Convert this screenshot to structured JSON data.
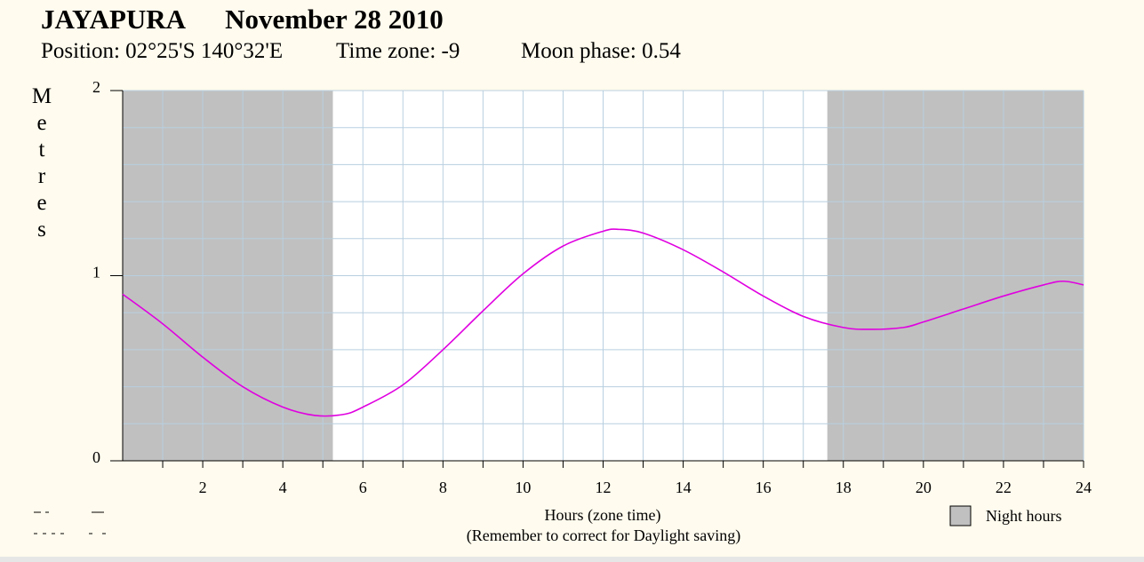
{
  "header": {
    "place": "JAYAPURA",
    "date": "November 28 2010",
    "position": "Position: 02°25'S 140°32'E",
    "timezone": "Time zone: -9",
    "moon_phase": "Moon phase: 0.54"
  },
  "legend": {
    "night_label": "Night hours"
  },
  "colors": {
    "night": "#c0c0c0",
    "curve": "#e000e0",
    "grid": "#b8cfe0",
    "background": "#fffbee"
  },
  "chart_data": {
    "type": "line",
    "ylabel": "Metres",
    "xlabel": "Hours (zone time)",
    "xlabel_note": "(Remember to correct for Daylight saving)",
    "xlim": [
      0,
      24
    ],
    "ylim": [
      0,
      2
    ],
    "x_ticks": [
      2,
      4,
      6,
      8,
      10,
      12,
      14,
      16,
      18,
      20,
      22,
      24
    ],
    "y_ticks": [
      0,
      1,
      2
    ],
    "night_periods": [
      [
        0,
        5.25
      ],
      [
        17.6,
        24
      ]
    ],
    "series": [
      {
        "x": [
          0,
          1,
          2,
          3,
          4,
          4.8,
          5.5,
          6,
          7,
          8,
          9,
          10,
          11,
          12,
          12.4,
          13,
          14,
          15,
          16,
          17,
          18,
          18.7,
          19.5,
          20,
          21,
          22,
          23,
          23.5,
          24
        ],
        "values": [
          0.9,
          0.74,
          0.56,
          0.4,
          0.29,
          0.245,
          0.25,
          0.29,
          0.41,
          0.6,
          0.81,
          1.01,
          1.16,
          1.24,
          1.25,
          1.23,
          1.14,
          1.02,
          0.89,
          0.78,
          0.72,
          0.71,
          0.72,
          0.75,
          0.82,
          0.89,
          0.95,
          0.97,
          0.95
        ]
      }
    ]
  }
}
